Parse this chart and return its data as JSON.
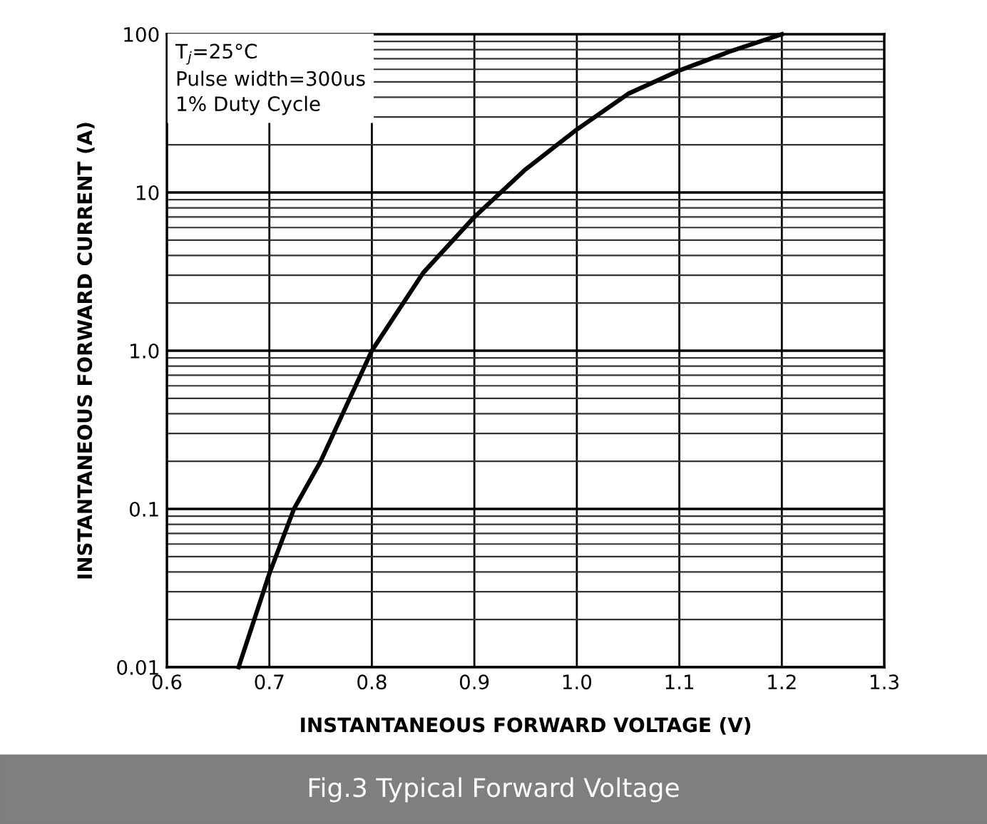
{
  "chart_data": {
    "type": "line",
    "title": "Fig.3 Typical Forward Voltage",
    "xlabel": "INSTANTANEOUS FORWARD VOLTAGE (V)",
    "ylabel": "INSTANTANEOUS FORWARD CURRENT (A)",
    "annotations": [
      "T$_{j}$=25°C\nPulse width=300us\n1% Duty Cycle"
    ],
    "x": [
      0.67,
      0.7,
      0.724,
      0.75,
      0.8,
      0.85,
      0.9,
      0.95,
      1.0,
      1.05,
      1.1,
      1.15,
      1.2
    ],
    "series": [
      {
        "color": "#000000",
        "values": [
          0.01,
          0.039,
          0.1,
          0.2,
          1.0,
          3.1,
          7,
          14,
          25,
          42,
          59,
          78,
          100
        ]
      }
    ],
    "xlim": [
      0.6,
      1.3
    ],
    "xticks": [
      0.6,
      0.7,
      0.8,
      0.9,
      {
        "value": 1,
        "label": "1.0"
      },
      1.1,
      1.2,
      1.3
    ],
    "ylim": [
      0.01,
      100
    ],
    "yticks": [
      {
        "value": 0.01,
        "label": "0.01"
      },
      {
        "value": 0.1,
        "label": "0.1"
      },
      {
        "value": 1,
        "label": "1.0"
      },
      {
        "value": 10,
        "label": "10"
      },
      {
        "value": 100,
        "label": "100"
      }
    ],
    "log": "y",
    "grid": true,
    "marker": "none",
    "line_style": "solid"
  }
}
